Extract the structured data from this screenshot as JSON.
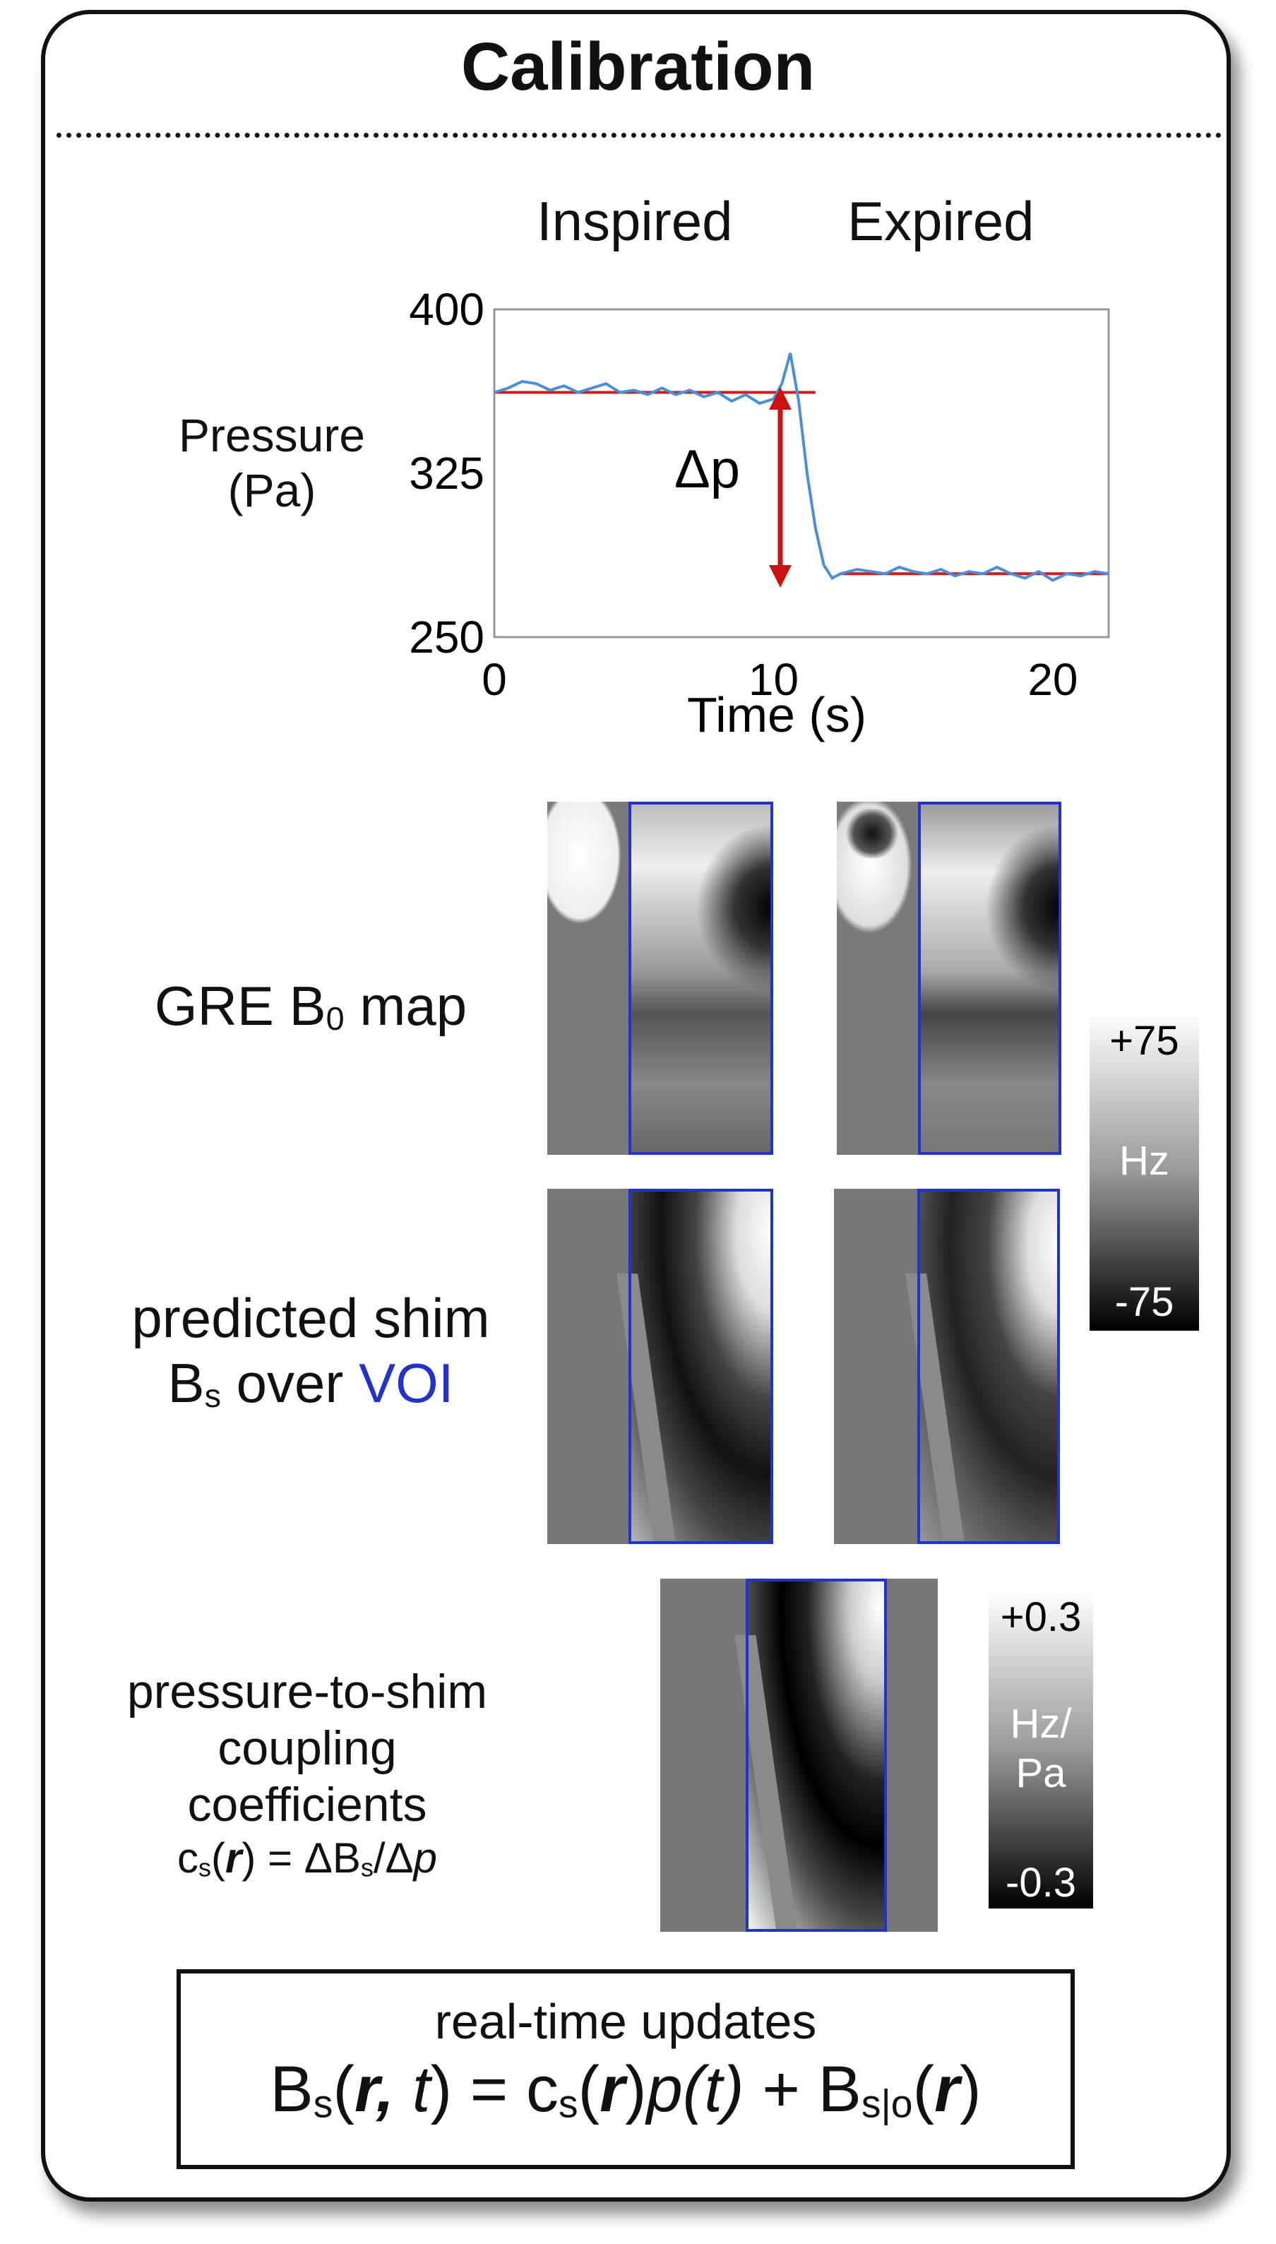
{
  "title": "Calibration",
  "columns": {
    "inspired": "Inspired",
    "expired": "Expired"
  },
  "pressure_label": [
    "Pressure",
    "(Pa)"
  ],
  "delta_p": "Δp",
  "chart_data": {
    "type": "line",
    "xlabel": "Time (s)",
    "ylabel": "Pressure (Pa)",
    "xlim": [
      0,
      22
    ],
    "ylim": [
      250,
      400
    ],
    "x_ticks": [
      "0",
      "10",
      "20"
    ],
    "y_ticks": [
      "400",
      "325",
      "250"
    ],
    "series": [
      {
        "x": [
          0,
          0.5,
          1,
          1.5,
          2,
          2.5,
          3,
          3.5,
          4,
          4.5,
          5,
          5.5,
          6,
          6.5,
          7,
          7.5,
          8,
          8.5,
          9,
          9.5,
          10,
          10.3,
          10.6,
          10.9,
          11.2,
          11.5,
          11.8,
          12.1,
          12.4,
          13,
          13.5,
          14,
          14.5,
          15,
          15.5,
          16,
          16.5,
          17,
          17.5,
          18,
          18.5,
          19,
          19.5,
          20,
          20.5,
          21,
          21.5,
          22
        ],
        "y": [
          362,
          364,
          367,
          366,
          363,
          365,
          362,
          364,
          366,
          362,
          363,
          361,
          364,
          361,
          363,
          360,
          362,
          358,
          361,
          357,
          359,
          366,
          380,
          358,
          325,
          300,
          283,
          277,
          279,
          281,
          280,
          279,
          282,
          280,
          279,
          281,
          278,
          280,
          279,
          282,
          279,
          277,
          280,
          276,
          279,
          278,
          280,
          279
        ]
      }
    ],
    "fits": [
      {
        "x": [
          0,
          11.5
        ],
        "y": [
          362,
          362
        ]
      },
      {
        "x": [
          12.4,
          22
        ],
        "y": [
          279,
          279
        ]
      }
    ],
    "colors": {
      "data": "#4a90d9",
      "fit": "#d11a1a"
    }
  },
  "rows": {
    "gre": {
      "label_pre": "GRE B",
      "label_sub": "0",
      "label_post": " map"
    },
    "shim": {
      "line1": "predicted shim",
      "line2_pre": "B",
      "line2_sub": "s",
      "line2_mid": " over ",
      "voi": "VOI"
    },
    "coupling": {
      "line1": "pressure-to-shim",
      "line2": "coupling coefficients",
      "line3_a": "c",
      "line3_sub": "s",
      "line3_r": "r",
      "line3_b": " = ΔB",
      "line3_sub2": "s",
      "line3_c": "/Δ",
      "line3_p": "p"
    }
  },
  "colorbar1": {
    "top": "+75",
    "unit": "Hz",
    "bottom": "-75"
  },
  "colorbar2": {
    "top": "+0.3",
    "unit1": "Hz/",
    "unit2": "Pa",
    "bottom": "-0.3"
  },
  "updates": {
    "title": "real-time updates",
    "eq": {
      "b": "B",
      "s1": "s",
      "open": "(",
      "r1": "r",
      "comma": ", ",
      "t1": "t",
      "close": ") = c",
      "s2": "s",
      "open2": "(",
      "r2": "r",
      "close2": ")",
      "p": "p",
      "pt": "(t)",
      "plus": " + B",
      "s3": "s|o",
      "open3": "(",
      "r3": "r",
      "close3": ")"
    }
  }
}
